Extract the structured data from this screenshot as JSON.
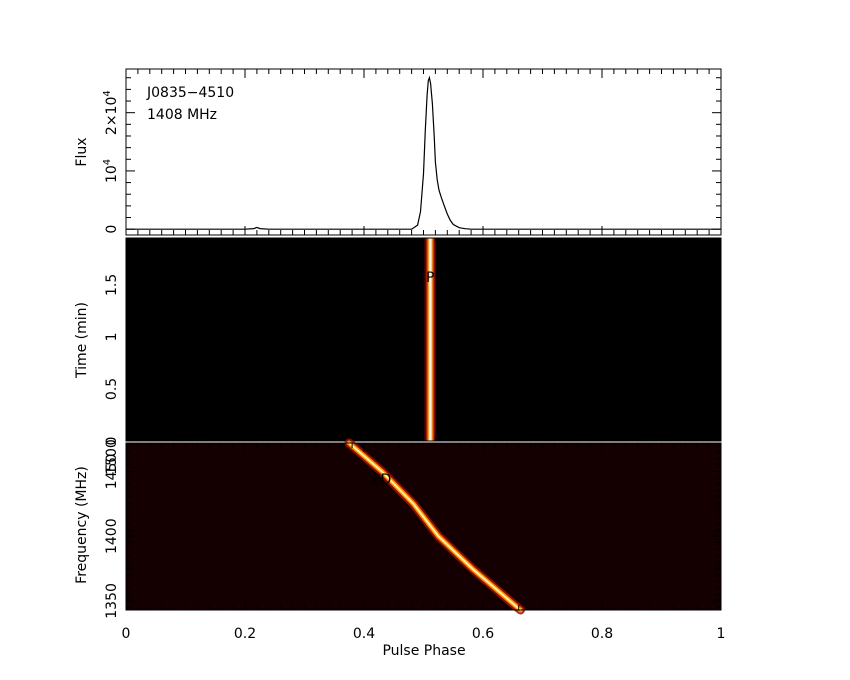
{
  "chart_data": [
    {
      "type": "line",
      "panel": "profile",
      "annotations": [
        "J0835−4510",
        "1408 MHz"
      ],
      "xlabel": "",
      "ylabel": "Flux",
      "xlim": [
        0,
        1
      ],
      "ylim": [
        -1000,
        27500
      ],
      "y_ticks": [
        {
          "value": 0,
          "label": "0",
          "sup": ""
        },
        {
          "value": 10000,
          "label": "10",
          "sup": "4"
        },
        {
          "value": 20000,
          "label": "2×10",
          "sup": "4"
        }
      ],
      "series": [
        {
          "x": [
            0.0,
            0.2,
            0.215,
            0.22,
            0.225,
            0.24,
            0.48,
            0.49,
            0.495,
            0.5,
            0.503,
            0.506,
            0.508,
            0.51,
            0.512,
            0.515,
            0.518,
            0.52,
            0.523,
            0.526,
            0.53,
            0.535,
            0.54,
            0.545,
            0.55,
            0.56,
            0.57,
            0.58,
            1.0
          ],
          "y": [
            0,
            0,
            100,
            300,
            100,
            0,
            0,
            700,
            3000,
            9500,
            17000,
            23000,
            25500,
            26000,
            25000,
            21500,
            16000,
            11500,
            8500,
            6700,
            5400,
            4000,
            2600,
            1500,
            800,
            250,
            80,
            0,
            0
          ]
        }
      ],
      "grid": false
    },
    {
      "type": "heatmap",
      "panel": "time-vs-phase",
      "xlabel": "",
      "ylabel": "Time (min)",
      "xlim": [
        0,
        1
      ],
      "ylim": [
        0,
        1.95
      ],
      "y_ticks": [
        "0",
        "0.5",
        "1",
        "1.5"
      ],
      "feature": {
        "phase_center": 0.511,
        "width": 0.022
      },
      "colormap": [
        "#000000",
        "#3a0000",
        "#8b0000",
        "#d43000",
        "#ff9a00",
        "#ffee80",
        "#ffffff"
      ],
      "annotation": "PM"
    },
    {
      "type": "heatmap",
      "panel": "frequency-vs-phase",
      "xlabel": "Pulse Phase",
      "ylabel": "Frequency (MHz)",
      "xlim": [
        0,
        1
      ],
      "x_ticks": [
        "0",
        "0.2",
        "0.4",
        "0.6",
        "0.8",
        "1"
      ],
      "ylim": [
        1343,
        1472
      ],
      "y_ticks": [
        "1350",
        "1400",
        "1450",
        "1500"
      ],
      "sweep": [
        {
          "freq": 1472,
          "phase": 0.375
        },
        {
          "freq": 1450,
          "phase": 0.43
        },
        {
          "freq": 1425,
          "phase": 0.483
        },
        {
          "freq": 1400,
          "phase": 0.525
        },
        {
          "freq": 1375,
          "phase": 0.582
        },
        {
          "freq": 1350,
          "phase": 0.645
        },
        {
          "freq": 1343,
          "phase": 0.663
        }
      ],
      "annotation": "PD"
    }
  ]
}
